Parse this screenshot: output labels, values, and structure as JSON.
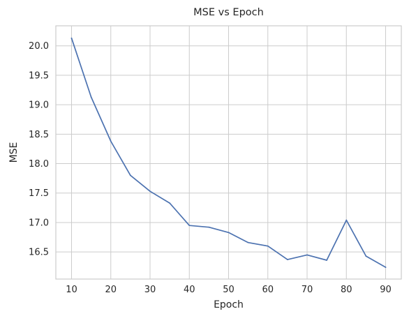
{
  "chart_data": {
    "type": "line",
    "title": "MSE vs Epoch",
    "xlabel": "Epoch",
    "ylabel": "MSE",
    "grid": true,
    "xlim": [
      6,
      94
    ],
    "ylim": [
      16.04,
      20.34
    ],
    "xticks": [
      10,
      20,
      30,
      40,
      50,
      60,
      70,
      80,
      90
    ],
    "yticks": [
      "16.5",
      "17.0",
      "17.5",
      "18.0",
      "18.5",
      "19.0",
      "19.5",
      "20.0"
    ],
    "x": [
      10,
      15,
      20,
      25,
      30,
      35,
      40,
      45,
      50,
      55,
      60,
      65,
      70,
      75,
      80,
      85,
      90
    ],
    "series": [
      {
        "values": [
          20.13,
          19.13,
          18.38,
          17.8,
          17.53,
          17.33,
          16.95,
          16.92,
          16.83,
          16.66,
          16.6,
          16.37,
          16.45,
          16.36,
          17.04,
          16.43,
          16.24
        ],
        "color": "#4c72b0"
      }
    ]
  }
}
